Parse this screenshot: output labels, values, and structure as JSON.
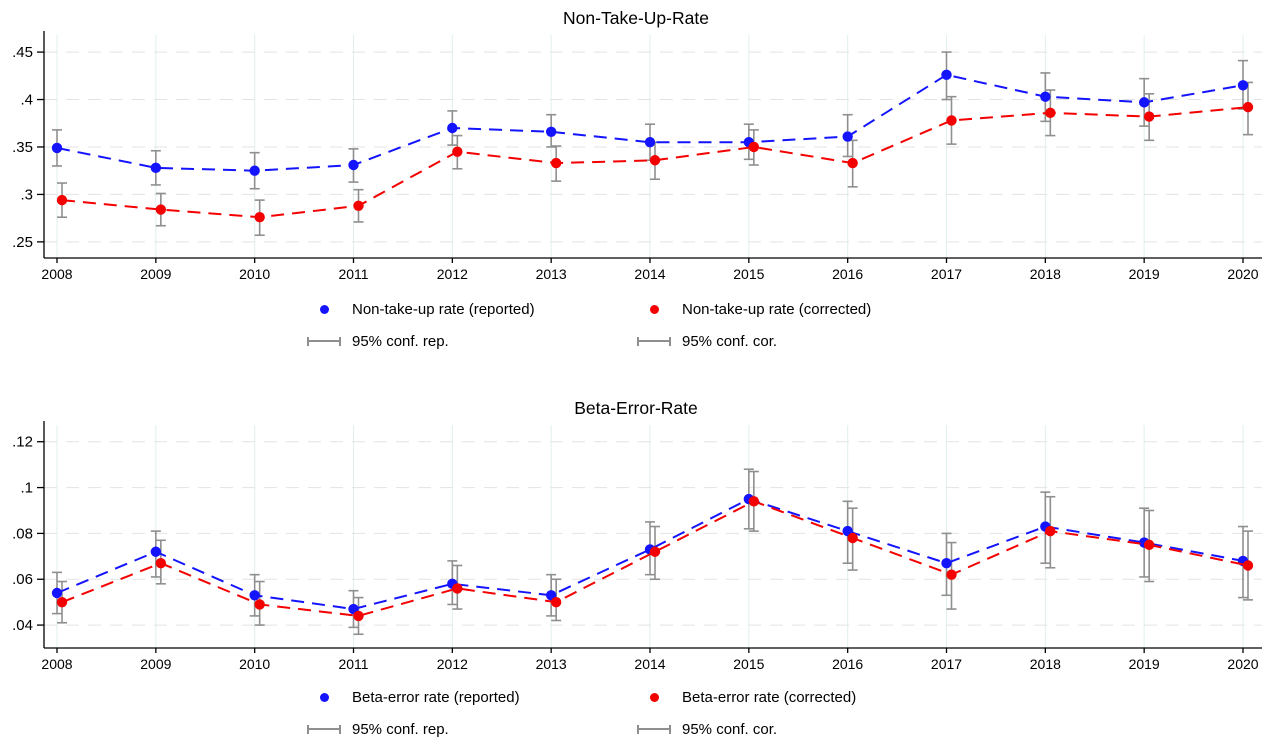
{
  "chart_data": [
    {
      "type": "line",
      "title": "Non-Take-Up-Rate",
      "x": [
        "2008",
        "2009",
        "2010",
        "2011",
        "2012",
        "2013",
        "2014",
        "2015",
        "2016",
        "2017",
        "2018",
        "2019",
        "2020"
      ],
      "ylim": [
        0.233,
        0.468
      ],
      "yticks": [
        0.25,
        0.3,
        0.35,
        0.4,
        0.45
      ],
      "ytick_labels": [
        ".25",
        ".3",
        ".35",
        ".4",
        ".45"
      ],
      "grid": "horizontal-dashed and vertical-light",
      "legend_position": "below-center",
      "ci_labels": [
        "95% conf. rep.",
        "95% conf. cor."
      ],
      "series": [
        {
          "name": "Non-take-up rate (reported)",
          "color": "#1414ff",
          "line_style": "dashed",
          "values": [
            0.349,
            0.328,
            0.325,
            0.331,
            0.37,
            0.366,
            0.355,
            0.355,
            0.361,
            0.426,
            0.403,
            0.397,
            0.415
          ],
          "ci_low": [
            0.33,
            0.31,
            0.306,
            0.313,
            0.352,
            0.35,
            0.336,
            0.337,
            0.34,
            0.4,
            0.377,
            0.372,
            0.39
          ],
          "ci_high": [
            0.368,
            0.346,
            0.344,
            0.348,
            0.388,
            0.384,
            0.374,
            0.374,
            0.384,
            0.45,
            0.428,
            0.422,
            0.441
          ]
        },
        {
          "name": "Non-take-up rate (corrected)",
          "color": "#f40000",
          "line_style": "dashed",
          "values": [
            0.294,
            0.284,
            0.276,
            0.288,
            0.345,
            0.333,
            0.336,
            0.35,
            0.333,
            0.378,
            0.386,
            0.382,
            0.392
          ],
          "ci_low": [
            0.276,
            0.267,
            0.257,
            0.271,
            0.327,
            0.314,
            0.316,
            0.331,
            0.308,
            0.353,
            0.362,
            0.357,
            0.363
          ],
          "ci_high": [
            0.312,
            0.301,
            0.294,
            0.305,
            0.362,
            0.351,
            0.355,
            0.368,
            0.357,
            0.403,
            0.41,
            0.406,
            0.418
          ]
        }
      ]
    },
    {
      "type": "line",
      "title": "Beta-Error-Rate",
      "x": [
        "2008",
        "2009",
        "2010",
        "2011",
        "2012",
        "2013",
        "2014",
        "2015",
        "2016",
        "2017",
        "2018",
        "2019",
        "2020"
      ],
      "ylim": [
        0.03,
        0.1273
      ],
      "yticks": [
        0.04,
        0.06,
        0.08,
        0.1,
        0.12
      ],
      "ytick_labels": [
        ".04",
        ".06",
        ".08",
        ".1",
        ".12"
      ],
      "grid": "horizontal-dashed and vertical-light",
      "legend_position": "below-center",
      "ci_labels": [
        "95% conf. rep.",
        "95% conf. cor."
      ],
      "series": [
        {
          "name": "Beta-error rate (reported)",
          "color": "#1414ff",
          "line_style": "dashed",
          "values": [
            0.054,
            0.072,
            0.053,
            0.047,
            0.058,
            0.053,
            0.073,
            0.095,
            0.081,
            0.067,
            0.083,
            0.076,
            0.068
          ],
          "ci_low": [
            0.045,
            0.061,
            0.044,
            0.039,
            0.049,
            0.044,
            0.062,
            0.082,
            0.067,
            0.053,
            0.067,
            0.061,
            0.052
          ],
          "ci_high": [
            0.063,
            0.081,
            0.062,
            0.055,
            0.068,
            0.062,
            0.085,
            0.108,
            0.094,
            0.08,
            0.098,
            0.091,
            0.083
          ]
        },
        {
          "name": "Beta-error rate (corrected)",
          "color": "#f40000",
          "line_style": "dashed",
          "values": [
            0.05,
            0.067,
            0.049,
            0.044,
            0.056,
            0.05,
            0.072,
            0.094,
            0.078,
            0.062,
            0.081,
            0.075,
            0.066
          ],
          "ci_low": [
            0.041,
            0.058,
            0.04,
            0.036,
            0.047,
            0.042,
            0.06,
            0.081,
            0.064,
            0.047,
            0.065,
            0.059,
            0.051
          ],
          "ci_high": [
            0.059,
            0.077,
            0.059,
            0.052,
            0.066,
            0.06,
            0.083,
            0.107,
            0.091,
            0.076,
            0.096,
            0.09,
            0.081
          ]
        }
      ]
    }
  ],
  "style": {
    "error_bar_color": "#8f8f8f",
    "vertical_grid_color": "#dff0ef",
    "horizontal_grid_color": "#e3e3e3",
    "axis_color": "#000000",
    "background": "#ffffff"
  }
}
